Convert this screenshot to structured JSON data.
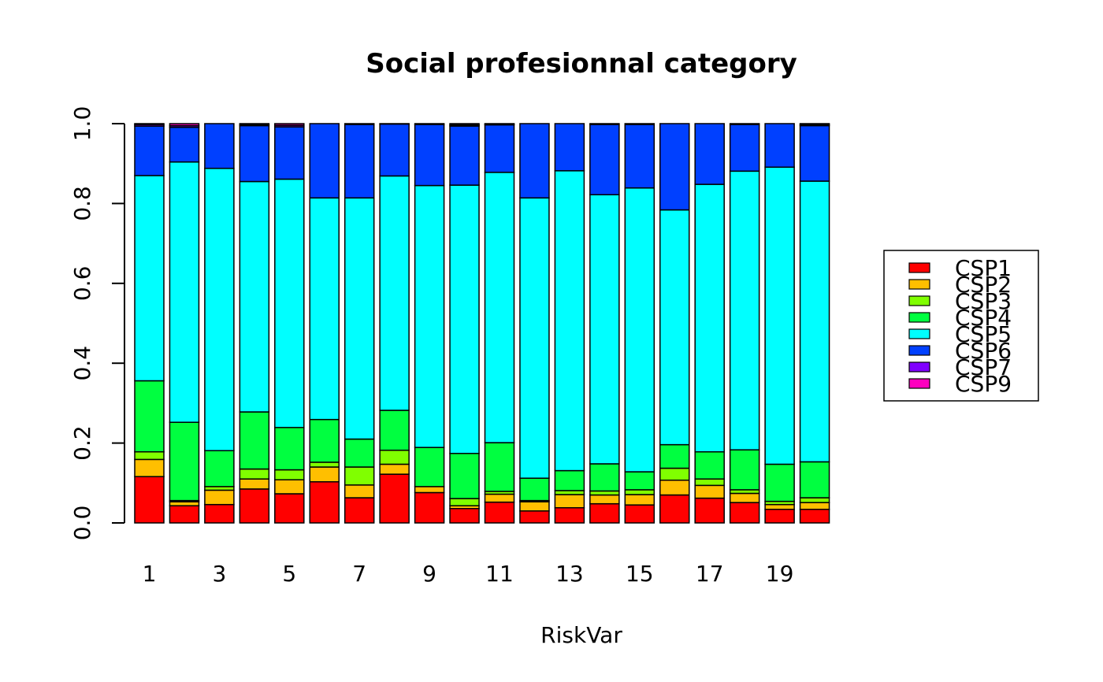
{
  "chart_data": {
    "type": "bar",
    "stacked": true,
    "title": "Social profesionnal category",
    "xlabel": "RiskVar",
    "ylabel": "",
    "ylim": [
      0,
      1
    ],
    "yticks": [
      "0.0",
      "0.2",
      "0.4",
      "0.6",
      "0.8",
      "1.0"
    ],
    "categories": [
      "1",
      "2",
      "3",
      "4",
      "5",
      "6",
      "7",
      "8",
      "9",
      "10",
      "11",
      "12",
      "13",
      "14",
      "15",
      "16",
      "17",
      "18",
      "19",
      "20"
    ],
    "xtick_labels_shown": [
      "1",
      "3",
      "5",
      "7",
      "9",
      "11",
      "13",
      "15",
      "17",
      "19"
    ],
    "legend_position": "right",
    "grid": false,
    "series": [
      {
        "name": "CSP1",
        "color": "#FF0000",
        "values": [
          0.116,
          0.043,
          0.046,
          0.085,
          0.073,
          0.103,
          0.063,
          0.122,
          0.076,
          0.036,
          0.052,
          0.03,
          0.038,
          0.048,
          0.045,
          0.07,
          0.062,
          0.051,
          0.034,
          0.034
        ]
      },
      {
        "name": "CSP2",
        "color": "#FFBF00",
        "values": [
          0.043,
          0.01,
          0.036,
          0.025,
          0.035,
          0.037,
          0.032,
          0.025,
          0.015,
          0.007,
          0.02,
          0.023,
          0.033,
          0.022,
          0.026,
          0.037,
          0.032,
          0.023,
          0.012,
          0.017
        ]
      },
      {
        "name": "CSP3",
        "color": "#80FF00",
        "values": [
          0.019,
          0.003,
          0.009,
          0.025,
          0.025,
          0.012,
          0.045,
          0.035,
          0.0,
          0.018,
          0.007,
          0.003,
          0.01,
          0.01,
          0.012,
          0.03,
          0.016,
          0.009,
          0.008,
          0.012
        ]
      },
      {
        "name": "CSP4",
        "color": "#00FF40",
        "values": [
          0.178,
          0.196,
          0.09,
          0.143,
          0.106,
          0.107,
          0.07,
          0.1,
          0.098,
          0.113,
          0.122,
          0.056,
          0.05,
          0.068,
          0.045,
          0.059,
          0.068,
          0.1,
          0.093,
          0.09
        ]
      },
      {
        "name": "CSP5",
        "color": "#00FFFF",
        "values": [
          0.514,
          0.652,
          0.707,
          0.577,
          0.622,
          0.555,
          0.604,
          0.587,
          0.656,
          0.672,
          0.677,
          0.702,
          0.751,
          0.674,
          0.711,
          0.588,
          0.67,
          0.698,
          0.744,
          0.703
        ]
      },
      {
        "name": "CSP6",
        "color": "#0040FF",
        "values": [
          0.124,
          0.087,
          0.112,
          0.14,
          0.131,
          0.186,
          0.184,
          0.13,
          0.153,
          0.148,
          0.119,
          0.186,
          0.118,
          0.176,
          0.159,
          0.216,
          0.152,
          0.117,
          0.109,
          0.139
        ]
      },
      {
        "name": "CSP7",
        "color": "#8000FF",
        "values": [
          0.004,
          0.004,
          0.0,
          0.003,
          0.004,
          0.0,
          0.002,
          0.0,
          0.002,
          0.003,
          0.002,
          0.0,
          0.0,
          0.002,
          0.002,
          0.0,
          0.0,
          0.002,
          0.0,
          0.003
        ]
      },
      {
        "name": "CSP9",
        "color": "#FF00BF",
        "values": [
          0.002,
          0.005,
          0.0,
          0.002,
          0.004,
          0.0,
          0.0,
          0.001,
          0.0,
          0.003,
          0.001,
          0.0,
          0.0,
          0.0,
          0.0,
          0.0,
          0.0,
          0.0,
          0.0,
          0.002
        ]
      }
    ]
  }
}
